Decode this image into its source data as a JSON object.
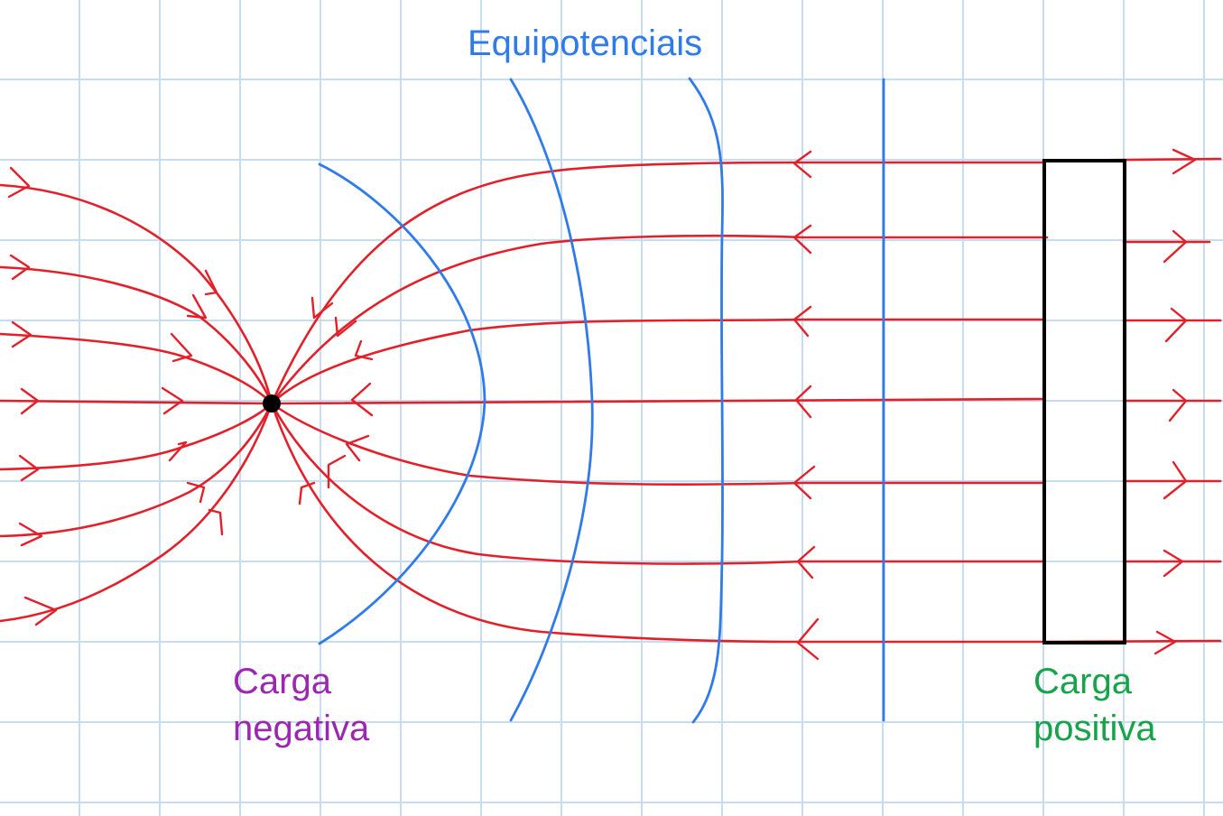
{
  "title": "Equipotenciais",
  "labels": {
    "negative_line1": "Carga",
    "negative_line2": "negativa",
    "positive_line1": "Carga",
    "positive_line2": "positiva"
  },
  "colors": {
    "grid": "#c6dcf2",
    "field_lines": "#e3202a",
    "equipotentials": "#2f7bea",
    "title": "#2f7bea",
    "negative_label": "#9c27b0",
    "positive_label": "#16a34a",
    "plate": "#000000",
    "charge_point": "#000000"
  },
  "icons": [
    "negative-point-charge",
    "positive-charged-plate"
  ]
}
